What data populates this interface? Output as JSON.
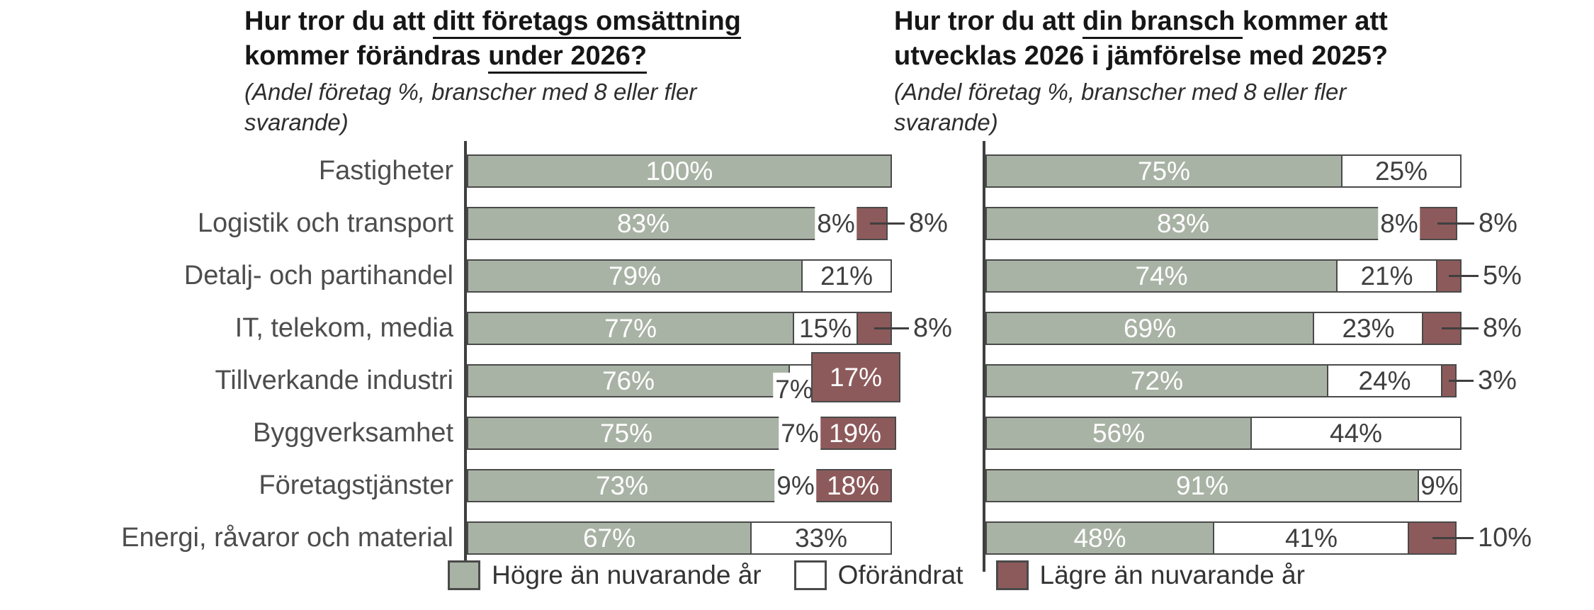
{
  "colors": {
    "higher": "#a9b3a5",
    "unchanged": "#ffffff",
    "lower": "#8d5a5b",
    "segment_border": "#4a4a4a",
    "axis": "#3f3f3f",
    "category_label_text": "#4d4d4d",
    "value_on_white_text": "#3f3f3f",
    "value_on_fill_text": "#ffffff",
    "title_text": "#161616"
  },
  "legend": {
    "items": [
      {
        "label": "Högre än nuvarande år",
        "key": "higher"
      },
      {
        "label": "Oförändrat",
        "key": "unchanged"
      },
      {
        "label": "Lägre än nuvarande år",
        "key": "lower"
      }
    ]
  },
  "chart_data": [
    {
      "type": "bar",
      "orientation": "horizontal",
      "stacked": true,
      "unit": "%",
      "xlim": [
        0,
        100
      ],
      "grid": false,
      "legend_position": "bottom",
      "title": "Hur tror du att ditt företags omsättning kommer förändras under 2026?",
      "title_lines": [
        [
          {
            "text": "Hur tror du att ",
            "underline": false
          },
          {
            "text": "ditt företags omsättning",
            "underline": true
          }
        ],
        [
          {
            "text": "kommer förändras ",
            "underline": false
          },
          {
            "text": "under 2026?",
            "underline": true
          }
        ]
      ],
      "subtitle": "(Andel företag %, branscher med 8 eller fler svarande)",
      "subtitle_lines": [
        "(Andel företag %, branscher med 8 eller fler",
        "svarande)"
      ],
      "categories": [
        "Fastigheter",
        "Logistik och transport",
        "Detalj- och partihandel",
        "IT, telekom, media",
        "Tillverkande industri",
        "Byggverksamhet",
        "Företagstjänster",
        "Energi, råvaror och material"
      ],
      "series": [
        {
          "name": "Högre än nuvarande år",
          "key": "higher",
          "values": [
            100,
            83,
            79,
            77,
            76,
            75,
            73,
            67
          ]
        },
        {
          "name": "Oförändrat",
          "key": "unchanged",
          "values": [
            null,
            8,
            21,
            15,
            7,
            7,
            9,
            33
          ]
        },
        {
          "name": "Lägre än nuvarande år",
          "key": "lower",
          "values": [
            null,
            8,
            null,
            8,
            17,
            19,
            18,
            null
          ]
        }
      ]
    },
    {
      "type": "bar",
      "orientation": "horizontal",
      "stacked": true,
      "unit": "%",
      "xlim": [
        0,
        100
      ],
      "grid": false,
      "legend_position": "bottom",
      "title": "Hur tror du att din bransch kommer att utvecklas 2026 i jämförelse med 2025?",
      "title_lines": [
        [
          {
            "text": "Hur tror du att ",
            "underline": false
          },
          {
            "text": "din bransch ",
            "underline": true
          },
          {
            "text": "kommer att",
            "underline": false
          }
        ],
        [
          {
            "text": "utvecklas 2026 i jämförelse med 2025?",
            "underline": false
          }
        ]
      ],
      "subtitle": "(Andel företag %, branscher med 8 eller fler svarande)",
      "subtitle_lines": [
        "(Andel företag %, branscher med 8 eller fler",
        "svarande)"
      ],
      "categories": [
        "Fastigheter",
        "Logistik och transport",
        "Detalj- och partihandel",
        "IT, telekom, media",
        "Tillverkande industri",
        "Byggverksamhet",
        "Företagstjänster",
        "Energi, råvaror och material"
      ],
      "series": [
        {
          "name": "Högre än nuvarande år",
          "key": "higher",
          "values": [
            75,
            83,
            74,
            69,
            72,
            56,
            91,
            48
          ]
        },
        {
          "name": "Oförändrat",
          "key": "unchanged",
          "values": [
            25,
            8,
            21,
            23,
            24,
            44,
            9,
            41
          ]
        },
        {
          "name": "Lägre än nuvarande år",
          "key": "lower",
          "values": [
            null,
            8,
            5,
            8,
            3,
            null,
            null,
            10
          ]
        }
      ]
    }
  ]
}
